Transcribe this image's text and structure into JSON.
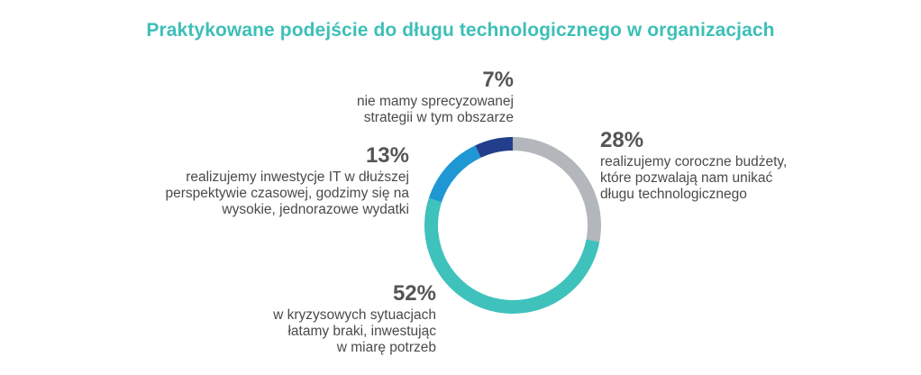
{
  "chart_data": {
    "type": "pie",
    "donut": true,
    "title": "Praktykowane podejście do długu technologicznego w organizacjach",
    "slices": [
      {
        "value": 28,
        "label": "28%",
        "description": "realizujemy coroczne budżety, które pozwalają nam unikać długu technologicznego",
        "lines": [
          "realizujemy coroczne budżety,",
          "które pozwalają nam unikać",
          "długu technologicznego"
        ],
        "color": "#b3b6ba"
      },
      {
        "value": 52,
        "label": "52%",
        "description": "w kryzysowych sytuacjach łatamy braki, inwestując w miarę potrzeb",
        "lines": [
          "w kryzysowych sytuacjach",
          "łatamy braki, inwestując",
          "w miarę potrzeb"
        ],
        "color": "#3fc1bc"
      },
      {
        "value": 13,
        "label": "13%",
        "description": "realizujemy inwestycje IT w dłuższej perspektywie czasowej, godzimy się na wysokie, jednorazowe wydatki",
        "lines": [
          "realizujemy inwestycje IT w dłuższej",
          "perspektywie czasowej, godzimy się na",
          "wysokie, jednorazowe wydatki"
        ],
        "color": "#1f97d4"
      },
      {
        "value": 7,
        "label": "7%",
        "description": "nie mamy sprecyzowanej strategii w tym obszarze",
        "lines": [
          "nie mamy sprecyzowanej",
          "strategii w tym obszarze"
        ],
        "color": "#233f8b"
      }
    ]
  }
}
